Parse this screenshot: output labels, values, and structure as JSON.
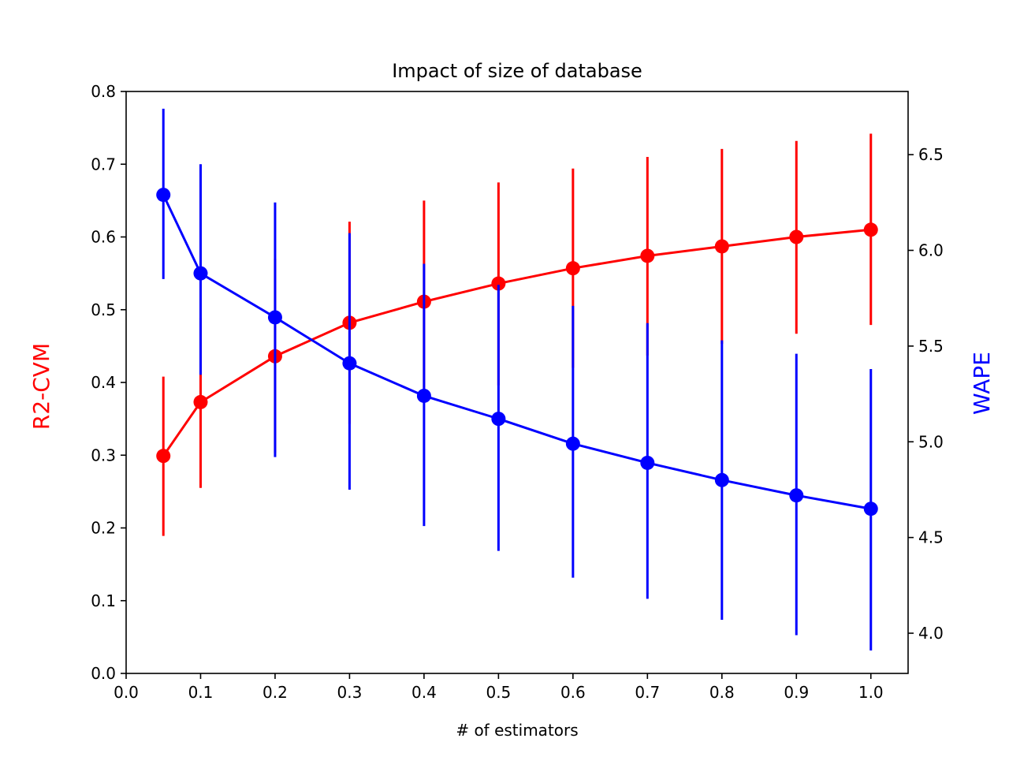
{
  "chart_data": {
    "type": "line",
    "title": "Impact of size of database",
    "xlabel": "# of estimators",
    "ylabel_left": "R2-CVM",
    "ylabel_right": "WAPE",
    "x": [
      0.05,
      0.1,
      0.2,
      0.3,
      0.4,
      0.5,
      0.6,
      0.7,
      0.8,
      0.9,
      1.0
    ],
    "xlim": [
      0.0,
      1.05
    ],
    "ylim_left": [
      0.0,
      0.8
    ],
    "ylim_right": [
      3.79,
      6.83
    ],
    "x_ticks": [
      "0.0",
      "0.1",
      "0.2",
      "0.3",
      "0.4",
      "0.5",
      "0.6",
      "0.7",
      "0.8",
      "0.9",
      "1.0"
    ],
    "y_left_ticks": [
      "0.0",
      "0.1",
      "0.2",
      "0.3",
      "0.4",
      "0.5",
      "0.6",
      "0.7",
      "0.8"
    ],
    "y_right_ticks": [
      "4.0",
      "4.5",
      "5.0",
      "5.5",
      "6.0",
      "6.5"
    ],
    "grid": false,
    "series": [
      {
        "axis": "left",
        "color": "#ff0000",
        "values": [
          0.299,
          0.373,
          0.436,
          0.482,
          0.511,
          0.536,
          0.557,
          0.574,
          0.587,
          0.6,
          0.61
        ],
        "err_low": [
          0.189,
          0.255,
          0.303,
          0.343,
          0.372,
          0.396,
          0.42,
          0.437,
          0.453,
          0.467,
          0.479
        ],
        "err_high": [
          0.408,
          0.489,
          0.57,
          0.621,
          0.65,
          0.675,
          0.694,
          0.71,
          0.721,
          0.732,
          0.742
        ]
      },
      {
        "axis": "right",
        "color": "#0000ff",
        "values": [
          6.29,
          5.88,
          5.65,
          5.41,
          5.24,
          5.12,
          4.99,
          4.89,
          4.8,
          4.72,
          4.65
        ],
        "err_low": [
          5.85,
          5.35,
          4.92,
          4.75,
          4.56,
          4.43,
          4.29,
          4.18,
          4.07,
          3.99,
          3.91
        ],
        "err_high": [
          6.74,
          6.45,
          6.25,
          6.09,
          5.93,
          5.82,
          5.71,
          5.62,
          5.53,
          5.46,
          5.38
        ]
      }
    ]
  }
}
